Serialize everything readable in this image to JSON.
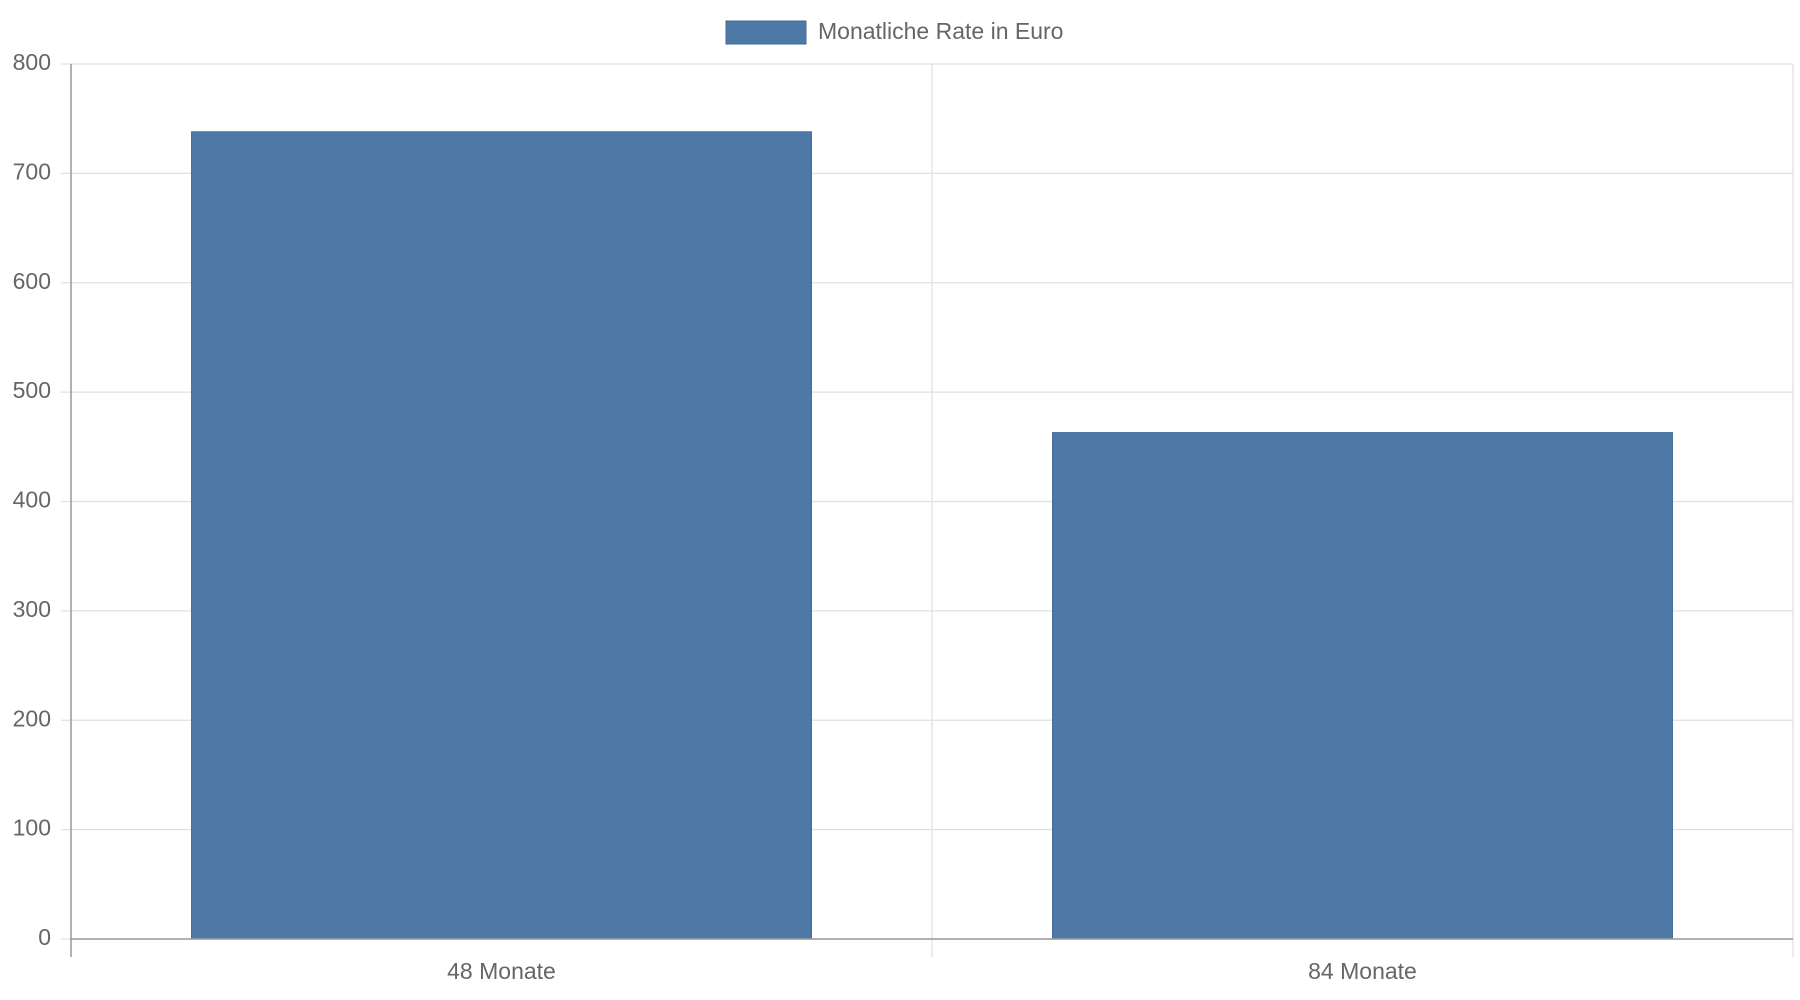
{
  "chart_data": {
    "type": "bar",
    "categories": [
      "48 Monate",
      "84 Monate"
    ],
    "series": [
      {
        "name": "Monatliche Rate in Euro",
        "color": "#4e79a7",
        "values": [
          738,
          463
        ]
      }
    ],
    "ylim": [
      0,
      800
    ],
    "yticks": [
      0,
      100,
      200,
      300,
      400,
      500,
      600,
      700,
      800
    ],
    "grid": true,
    "legend": "top"
  }
}
